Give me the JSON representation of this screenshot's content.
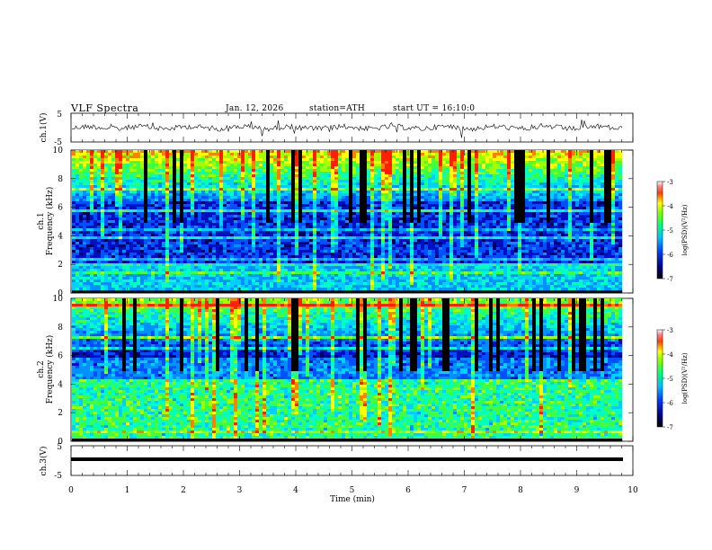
{
  "header": {
    "title": "VLF Spectra",
    "date": "Jan. 12, 2026",
    "station": "station=ATH",
    "start": "start UT =  16:10:0"
  },
  "chart_data": [
    {
      "type": "line",
      "panel": "ch.1 waveform",
      "ylabel": "ch.1(V)",
      "ylim": [
        -5,
        5
      ],
      "yticklabels": [
        "5",
        "-5"
      ],
      "xlim": [
        0,
        10
      ]
    },
    {
      "type": "heatmap",
      "panel": "ch.1 spectrogram",
      "ylabel_channel": "ch.1",
      "ylabel": "Frequency (kHz)",
      "ylim": [
        0,
        10
      ],
      "yticklabels": [
        "0",
        "2",
        "4",
        "6",
        "8",
        "10"
      ],
      "colorbar": {
        "label": "log(PSD)(V²/Hz)",
        "range": [
          -7,
          -3
        ],
        "ticks": [
          "-3",
          "-4",
          "-5",
          "-6",
          "-7"
        ]
      }
    },
    {
      "type": "heatmap",
      "panel": "ch.2 spectrogram",
      "ylabel_channel": "ch.2",
      "ylabel": "Frequency (kHz)",
      "ylim": [
        0,
        10
      ],
      "yticklabels": [
        "0",
        "2",
        "4",
        "6",
        "8",
        "10"
      ],
      "colorbar": {
        "label": "log(PSD)(V²/Hz)",
        "range": [
          -7,
          -3
        ],
        "ticks": [
          "-3",
          "-4",
          "-5",
          "-6",
          "-7"
        ]
      }
    },
    {
      "type": "line",
      "panel": "ch.3 waveform",
      "ylabel": "ch.3(V)",
      "ylim": [
        -5,
        5
      ],
      "yticklabels": [
        "5",
        "-5"
      ],
      "xlabel": "Time (min)",
      "xlim": [
        0,
        10
      ],
      "xticklabels": [
        "0",
        "1",
        "2",
        "3",
        "4",
        "5",
        "6",
        "7",
        "8",
        "9",
        "10"
      ]
    }
  ]
}
